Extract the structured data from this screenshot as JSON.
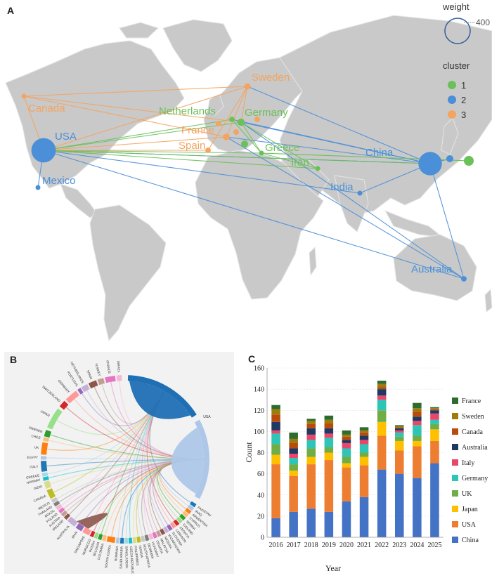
{
  "panels": {
    "a": "A",
    "b": "B",
    "c": "C"
  },
  "map": {
    "legend": {
      "weight_title": "weight",
      "weight_value": "400",
      "cluster_title": "cluster",
      "clusters": [
        {
          "label": "1",
          "color": "#6cc05a"
        },
        {
          "label": "2",
          "color": "#4a8fd8"
        },
        {
          "label": "3",
          "color": "#f4a460"
        }
      ]
    },
    "countries": [
      {
        "name": "USA",
        "cluster": "2",
        "weight": 390
      },
      {
        "name": "China",
        "cluster": "2",
        "weight": 360
      },
      {
        "name": "Mexico",
        "cluster": "2",
        "weight": 10
      },
      {
        "name": "India",
        "cluster": "2",
        "weight": 10
      },
      {
        "name": "Australia",
        "cluster": "2",
        "weight": 20
      },
      {
        "name": "Canada",
        "cluster": "3",
        "weight": 15
      },
      {
        "name": "Sweden",
        "cluster": "3",
        "weight": 25
      },
      {
        "name": "France",
        "cluster": "3",
        "weight": 30
      },
      {
        "name": "Spain",
        "cluster": "3",
        "weight": 20
      },
      {
        "name": "Netherlands",
        "cluster": "1",
        "weight": 20
      },
      {
        "name": "Germany",
        "cluster": "1",
        "weight": 35
      },
      {
        "name": "Greece",
        "cluster": "1",
        "weight": 15
      },
      {
        "name": "Iran",
        "cluster": "1",
        "weight": 15
      }
    ]
  },
  "chord": {
    "countries": [
      "PAKISTAN",
      "IRAQ",
      "ARGENTINA",
      "CYPRUS",
      "SERBIA",
      "ICELAND",
      "CROATIA",
      "LEBANON",
      "SLOVENIA",
      "KAZAKHSTAN",
      "NIGERIA",
      "MALAYSIA",
      "CROATIA",
      "HUNGARY",
      "DENMARK",
      "SOUTH AFRICA",
      "TUNISIA",
      "PHILIPPINES",
      "CZECH REPUBLIC",
      "BANGLADESH",
      "SAUDI ARABIA",
      "ROMANIA",
      "SOUTH KOREA",
      "COLOMBIA",
      "BELGIUM",
      "RUSSIA",
      "MOROCCO",
      "SINGAPORE",
      "IRAN",
      "AUSTRALIA",
      "IRELAND",
      "AUSTRIA",
      "POLAND",
      "BRAZIL",
      "THAILAND",
      "MEXICO",
      "CANADA",
      "INDIA",
      "NORWAY",
      "GREECE",
      "ITALY",
      "EGYPT",
      "UK",
      "CHILE",
      "SWEDEN",
      "JAPAN",
      "SWITZERLAND",
      "GERMANY",
      "PORTUGAL",
      "NETHERLANDS",
      "SPAIN",
      "TURKEY",
      "FRANCE",
      "ISRAEL"
    ],
    "big": [
      "CHINA",
      "USA"
    ]
  },
  "chart_data": {
    "type": "bar",
    "stacked": true,
    "categories": [
      "2016",
      "2017",
      "2018",
      "2019",
      "2020",
      "2021",
      "2022",
      "2023",
      "2024",
      "2025"
    ],
    "xlabel": "Year",
    "ylabel": "Count",
    "ylim": [
      0,
      160
    ],
    "yticks": [
      "0",
      "20",
      "40",
      "60",
      "80",
      "100",
      "120",
      "140",
      "160"
    ],
    "legend_position": "right",
    "series": [
      {
        "name": "China",
        "color": "#4472c4",
        "values": [
          18,
          24,
          27,
          24,
          34,
          38,
          64,
          60,
          56,
          70
        ]
      },
      {
        "name": "USA",
        "color": "#ed7d31",
        "values": [
          51,
          34,
          42,
          49,
          32,
          30,
          32,
          22,
          30,
          21
        ]
      },
      {
        "name": "Japan",
        "color": "#ffc000",
        "values": [
          9,
          5,
          7,
          7,
          4,
          8,
          13,
          9,
          5,
          11
        ]
      },
      {
        "name": "UK",
        "color": "#70ad47",
        "values": [
          10,
          6,
          8,
          5,
          6,
          4,
          11,
          4,
          5,
          5
        ]
      },
      {
        "name": "Germany",
        "color": "#2ec4b6",
        "values": [
          10,
          6,
          8,
          9,
          8,
          8,
          10,
          4,
          10,
          4
        ]
      },
      {
        "name": "Italy",
        "color": "#e8476a",
        "values": [
          3,
          4,
          5,
          4,
          5,
          4,
          4,
          2,
          4,
          6
        ]
      },
      {
        "name": "Australia",
        "color": "#203864",
        "values": [
          8,
          5,
          6,
          5,
          3,
          4,
          6,
          2,
          4,
          3
        ]
      },
      {
        "name": "Canada",
        "color": "#b84a0c",
        "values": [
          7,
          5,
          4,
          5,
          3,
          3,
          2,
          1,
          5,
          1
        ]
      },
      {
        "name": "Sweden",
        "color": "#9c7d0a",
        "values": [
          5,
          4,
          3,
          3,
          2,
          2,
          3,
          1,
          3,
          1
        ]
      },
      {
        "name": "France",
        "color": "#2e6b2e",
        "values": [
          4,
          6,
          2,
          4,
          4,
          3,
          3,
          1,
          5,
          1
        ]
      }
    ]
  }
}
